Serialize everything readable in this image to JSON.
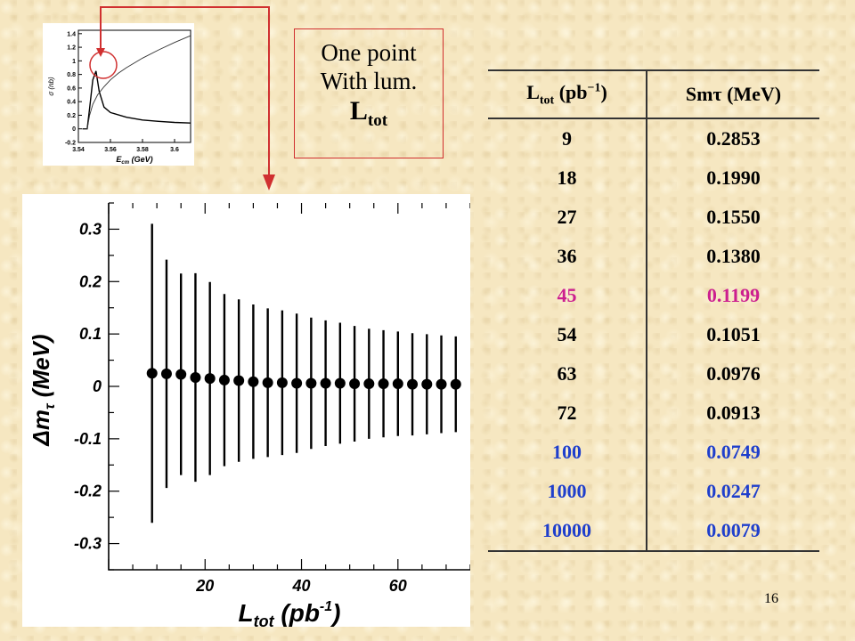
{
  "callout": {
    "line1": "One point",
    "line2": "With lum.",
    "line3_main": "L",
    "line3_sub": "tot"
  },
  "table": {
    "header": {
      "col1_main": "L",
      "col1_sub": "tot",
      "col1_unit_pre": " (pb",
      "col1_unit_sup": "−1",
      "col1_unit_post": ")",
      "col2_main": "Sm",
      "col2_sym": "τ",
      "col2_unit": " (MeV)"
    },
    "rows": [
      {
        "lum": "9",
        "sigma": "0.2853",
        "color": "#000000"
      },
      {
        "lum": "18",
        "sigma": "0.1990",
        "color": "#000000"
      },
      {
        "lum": "27",
        "sigma": "0.1550",
        "color": "#000000"
      },
      {
        "lum": "36",
        "sigma": "0.1380",
        "color": "#000000"
      },
      {
        "lum": "45",
        "sigma": "0.1199",
        "color": "#cc1f8f"
      },
      {
        "lum": "54",
        "sigma": "0.1051",
        "color": "#000000"
      },
      {
        "lum": "63",
        "sigma": "0.0976",
        "color": "#000000"
      },
      {
        "lum": "72",
        "sigma": "0.0913",
        "color": "#000000"
      },
      {
        "lum": "100",
        "sigma": "0.0749",
        "color": "#1f3fcc"
      },
      {
        "lum": "1000",
        "sigma": "0.0247",
        "color": "#1f3fcc"
      },
      {
        "lum": "10000",
        "sigma": "0.0079",
        "color": "#1f3fcc"
      }
    ]
  },
  "page_number": "16",
  "colors": {
    "callout_border": "#d03030",
    "arrow": "#d03030",
    "circle": "#d03030"
  },
  "chart_data": [
    {
      "type": "line",
      "xlabel_main": "E",
      "xlabel_sub": "cm",
      "xlabel_unit": " (GeV)",
      "ylabel": "σ (nb)",
      "xlim": [
        3.54,
        3.61
      ],
      "ylim": [
        -0.2,
        1.45
      ],
      "x_ticks": [
        "3.54",
        "3.56",
        "3.58",
        "3.6"
      ],
      "y_ticks": [
        "-0.2",
        "0",
        "0.2",
        "0.4",
        "0.6",
        "0.8",
        "1",
        "1.2",
        "1.4"
      ],
      "series": [
        {
          "x": [
            3.5425,
            3.5455,
            3.547,
            3.549,
            3.551,
            3.553,
            3.556,
            3.56,
            3.57,
            3.58,
            3.59,
            3.6,
            3.61
          ],
          "y": [
            0.0,
            0.0,
            0.3,
            0.72,
            0.85,
            0.55,
            0.32,
            0.24,
            0.17,
            0.13,
            0.11,
            0.095,
            0.085
          ]
        },
        {
          "x": [
            3.5425,
            3.5455,
            3.547,
            3.549,
            3.552,
            3.556,
            3.56,
            3.565,
            3.57,
            3.58,
            3.59,
            3.6,
            3.61
          ],
          "y": [
            0.0,
            0.0,
            0.2,
            0.36,
            0.5,
            0.62,
            0.72,
            0.82,
            0.9,
            1.04,
            1.16,
            1.27,
            1.37
          ]
        }
      ]
    },
    {
      "type": "scatter",
      "xlabel_main": "L",
      "xlabel_sub": "tot",
      "xlabel_unit_pre": " (pb",
      "xlabel_unit_sup": "-1",
      "xlabel_unit_post": ")",
      "ylabel_pre": "Δm",
      "ylabel_sub": "τ",
      "ylabel_unit": " (MeV)",
      "xlim": [
        0,
        75
      ],
      "ylim": [
        -0.35,
        0.35
      ],
      "x_ticks": [
        "20",
        "40",
        "60"
      ],
      "y_ticks": [
        "0.3",
        "0.2",
        "0.1",
        "0",
        "-0.1",
        "-0.2",
        "-0.3"
      ],
      "x": [
        9,
        12,
        15,
        18,
        21,
        24,
        27,
        30,
        33,
        36,
        39,
        42,
        45,
        48,
        51,
        54,
        57,
        60,
        63,
        66,
        69,
        72
      ],
      "y": [
        0.025,
        0.024,
        0.023,
        0.017,
        0.015,
        0.012,
        0.011,
        0.009,
        0.007,
        0.007,
        0.006,
        0.006,
        0.006,
        0.006,
        0.005,
        0.005,
        0.005,
        0.005,
        0.004,
        0.004,
        0.004,
        0.004
      ],
      "error": [
        0.2853,
        0.2178,
        0.1923,
        0.199,
        0.1843,
        0.1643,
        0.155,
        0.1473,
        0.1418,
        0.138,
        0.133,
        0.1253,
        0.1199,
        0.1154,
        0.1104,
        0.1051,
        0.1022,
        0.0998,
        0.0976,
        0.0955,
        0.0933,
        0.0913
      ]
    }
  ]
}
